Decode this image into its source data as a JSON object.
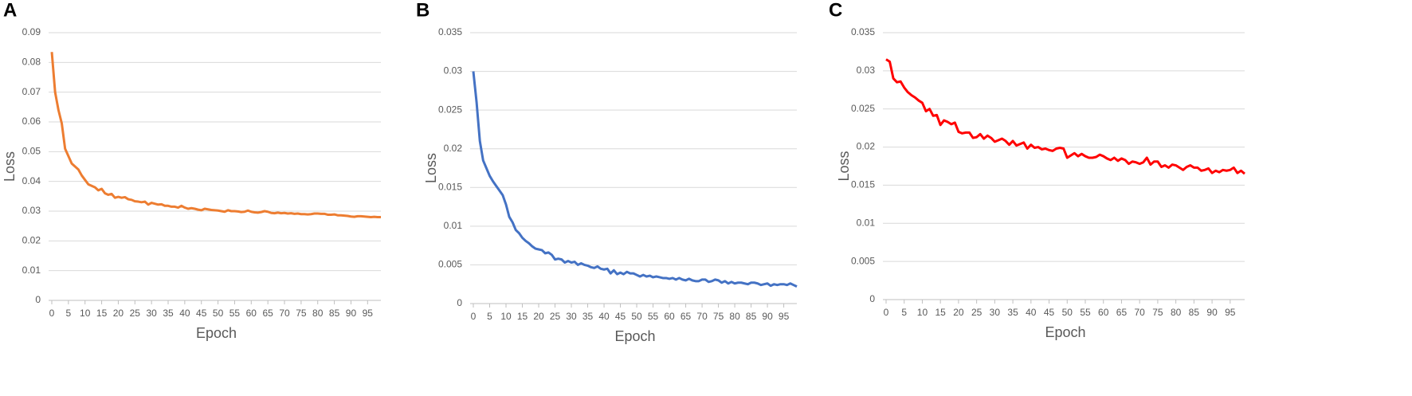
{
  "chart_data": [
    {
      "type": "line",
      "panel": "A",
      "x_label": "Epoch",
      "y_label": "Loss",
      "x": [
        0,
        1,
        2,
        3,
        4,
        5,
        6,
        7,
        8,
        9,
        10,
        11,
        12,
        13,
        14,
        15,
        16,
        17,
        18,
        19,
        20,
        21,
        22,
        23,
        24,
        25,
        26,
        27,
        28,
        29,
        30,
        31,
        32,
        33,
        34,
        35,
        36,
        37,
        38,
        39,
        40,
        41,
        42,
        43,
        44,
        45,
        46,
        47,
        48,
        49,
        50,
        51,
        52,
        53,
        54,
        55,
        56,
        57,
        58,
        59,
        60,
        61,
        62,
        63,
        64,
        65,
        66,
        67,
        68,
        69,
        70,
        71,
        72,
        73,
        74,
        75,
        76,
        77,
        78,
        79,
        80,
        81,
        82,
        83,
        84,
        85,
        86,
        87,
        88,
        89,
        90,
        91,
        92,
        93,
        94,
        95,
        96,
        97,
        98,
        99
      ],
      "xlim": [
        0,
        99
      ],
      "xticks": [
        0,
        5,
        10,
        15,
        20,
        25,
        30,
        35,
        40,
        45,
        50,
        55,
        60,
        65,
        70,
        75,
        80,
        85,
        90,
        95
      ],
      "ylim": [
        0,
        0.09
      ],
      "yticks": [
        0,
        0.01,
        0.02,
        0.03,
        0.04,
        0.05,
        0.06,
        0.07,
        0.08,
        0.09
      ],
      "grid": true,
      "series": [
        {
          "color": "#ED7D31",
          "values": [
            0.0835,
            0.07,
            0.064,
            0.0595,
            0.051,
            0.0485,
            0.046,
            0.045,
            0.044,
            0.042,
            0.0405,
            0.039,
            0.0385,
            0.038,
            0.037,
            0.0375,
            0.036,
            0.0355,
            0.0358,
            0.0345,
            0.0348,
            0.0345,
            0.0347,
            0.034,
            0.0338,
            0.0333,
            0.0332,
            0.033,
            0.0332,
            0.0322,
            0.0328,
            0.0325,
            0.0322,
            0.0323,
            0.0318,
            0.0318,
            0.0315,
            0.0315,
            0.0312,
            0.0318,
            0.0312,
            0.0308,
            0.031,
            0.0308,
            0.0305,
            0.0303,
            0.0308,
            0.0306,
            0.0304,
            0.0303,
            0.0302,
            0.03,
            0.0298,
            0.0303,
            0.03,
            0.03,
            0.0299,
            0.0297,
            0.0298,
            0.0302,
            0.0298,
            0.0296,
            0.0295,
            0.0297,
            0.03,
            0.0298,
            0.0294,
            0.0293,
            0.0295,
            0.0293,
            0.0294,
            0.0292,
            0.0293,
            0.0291,
            0.0292,
            0.029,
            0.029,
            0.0289,
            0.029,
            0.0292,
            0.0292,
            0.0291,
            0.0291,
            0.0288,
            0.0288,
            0.0289,
            0.0286,
            0.0286,
            0.0285,
            0.0284,
            0.0282,
            0.0281,
            0.0283,
            0.0283,
            0.0282,
            0.0281,
            0.028,
            0.0281,
            0.028,
            0.028
          ]
        }
      ]
    },
    {
      "type": "line",
      "panel": "B",
      "x_label": "Epoch",
      "y_label": "Loss",
      "x": [
        0,
        1,
        2,
        3,
        4,
        5,
        6,
        7,
        8,
        9,
        10,
        11,
        12,
        13,
        14,
        15,
        16,
        17,
        18,
        19,
        20,
        21,
        22,
        23,
        24,
        25,
        26,
        27,
        28,
        29,
        30,
        31,
        32,
        33,
        34,
        35,
        36,
        37,
        38,
        39,
        40,
        41,
        42,
        43,
        44,
        45,
        46,
        47,
        48,
        49,
        50,
        51,
        52,
        53,
        54,
        55,
        56,
        57,
        58,
        59,
        60,
        61,
        62,
        63,
        64,
        65,
        66,
        67,
        68,
        69,
        70,
        71,
        72,
        73,
        74,
        75,
        76,
        77,
        78,
        79,
        80,
        81,
        82,
        83,
        84,
        85,
        86,
        87,
        88,
        89,
        90,
        91,
        92,
        93,
        94,
        95,
        96,
        97,
        98,
        99
      ],
      "xlim": [
        0,
        99
      ],
      "xticks": [
        0,
        5,
        10,
        15,
        20,
        25,
        30,
        35,
        40,
        45,
        50,
        55,
        60,
        65,
        70,
        75,
        80,
        85,
        90,
        95
      ],
      "ylim": [
        0,
        0.035
      ],
      "yticks": [
        0,
        0.005,
        0.01,
        0.015,
        0.02,
        0.025,
        0.03,
        0.035
      ],
      "grid": true,
      "series": [
        {
          "color": "#4472C4",
          "values": [
            0.03,
            0.026,
            0.021,
            0.0185,
            0.0175,
            0.0165,
            0.0158,
            0.0152,
            0.0146,
            0.014,
            0.0128,
            0.0112,
            0.0105,
            0.0095,
            0.0091,
            0.0085,
            0.0081,
            0.0078,
            0.0074,
            0.0071,
            0.007,
            0.0069,
            0.0065,
            0.0066,
            0.0063,
            0.0057,
            0.0058,
            0.0057,
            0.0053,
            0.0055,
            0.0053,
            0.0054,
            0.005,
            0.0052,
            0.005,
            0.0049,
            0.0047,
            0.0046,
            0.0048,
            0.0045,
            0.0044,
            0.0045,
            0.0039,
            0.0043,
            0.0038,
            0.004,
            0.0038,
            0.0041,
            0.0039,
            0.0039,
            0.0037,
            0.0035,
            0.0037,
            0.0035,
            0.0036,
            0.0034,
            0.0035,
            0.0034,
            0.0033,
            0.0033,
            0.0032,
            0.0033,
            0.0031,
            0.0033,
            0.0031,
            0.003,
            0.0032,
            0.003,
            0.0029,
            0.0029,
            0.0031,
            0.0031,
            0.0028,
            0.0029,
            0.0031,
            0.003,
            0.0027,
            0.0029,
            0.0026,
            0.0028,
            0.0026,
            0.0027,
            0.0027,
            0.0026,
            0.0025,
            0.0027,
            0.0027,
            0.0026,
            0.0024,
            0.0025,
            0.0026,
            0.0023,
            0.0025,
            0.0024,
            0.0025,
            0.0025,
            0.0024,
            0.0026,
            0.0024,
            0.0022
          ]
        }
      ]
    },
    {
      "type": "line",
      "panel": "C",
      "x_label": "Epoch",
      "y_label": "Loss",
      "x": [
        0,
        1,
        2,
        3,
        4,
        5,
        6,
        7,
        8,
        9,
        10,
        11,
        12,
        13,
        14,
        15,
        16,
        17,
        18,
        19,
        20,
        21,
        22,
        23,
        24,
        25,
        26,
        27,
        28,
        29,
        30,
        31,
        32,
        33,
        34,
        35,
        36,
        37,
        38,
        39,
        40,
        41,
        42,
        43,
        44,
        45,
        46,
        47,
        48,
        49,
        50,
        51,
        52,
        53,
        54,
        55,
        56,
        57,
        58,
        59,
        60,
        61,
        62,
        63,
        64,
        65,
        66,
        67,
        68,
        69,
        70,
        71,
        72,
        73,
        74,
        75,
        76,
        77,
        78,
        79,
        80,
        81,
        82,
        83,
        84,
        85,
        86,
        87,
        88,
        89,
        90,
        91,
        92,
        93,
        94,
        95,
        96,
        97,
        98,
        99
      ],
      "xlim": [
        0,
        99
      ],
      "xticks": [
        0,
        5,
        10,
        15,
        20,
        25,
        30,
        35,
        40,
        45,
        50,
        55,
        60,
        65,
        70,
        75,
        80,
        85,
        90,
        95
      ],
      "ylim": [
        0,
        0.035
      ],
      "yticks": [
        0,
        0.005,
        0.01,
        0.015,
        0.02,
        0.025,
        0.03,
        0.035
      ],
      "grid": true,
      "series": [
        {
          "color": "#FF0000",
          "values": [
            0.0315,
            0.0312,
            0.029,
            0.0285,
            0.0286,
            0.0278,
            0.0272,
            0.0268,
            0.0265,
            0.0261,
            0.0258,
            0.0247,
            0.025,
            0.0241,
            0.0242,
            0.0229,
            0.0235,
            0.0233,
            0.023,
            0.0232,
            0.022,
            0.0218,
            0.0219,
            0.0219,
            0.0212,
            0.0213,
            0.0217,
            0.0211,
            0.0215,
            0.0212,
            0.0207,
            0.0209,
            0.0211,
            0.0208,
            0.0203,
            0.0208,
            0.0202,
            0.0204,
            0.0206,
            0.0198,
            0.0203,
            0.0199,
            0.02,
            0.0197,
            0.0198,
            0.0196,
            0.0195,
            0.0198,
            0.0199,
            0.0198,
            0.0186,
            0.0189,
            0.0192,
            0.0188,
            0.0191,
            0.0188,
            0.0186,
            0.0186,
            0.0187,
            0.019,
            0.0188,
            0.0185,
            0.0183,
            0.0186,
            0.0182,
            0.0185,
            0.0183,
            0.0178,
            0.0181,
            0.018,
            0.0178,
            0.018,
            0.0186,
            0.0177,
            0.0181,
            0.0181,
            0.0174,
            0.0176,
            0.0173,
            0.0177,
            0.0176,
            0.0173,
            0.017,
            0.0174,
            0.0176,
            0.0173,
            0.0173,
            0.0169,
            0.017,
            0.0172,
            0.0166,
            0.0169,
            0.0167,
            0.017,
            0.0169,
            0.017,
            0.0173,
            0.0166,
            0.0169,
            0.0165
          ]
        }
      ]
    }
  ]
}
